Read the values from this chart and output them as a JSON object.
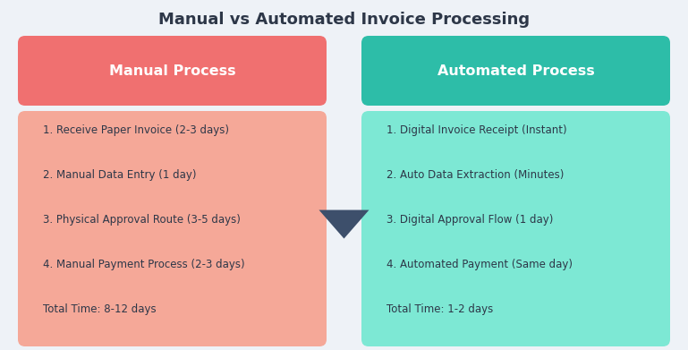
{
  "title": "Manual vs Automated Invoice Processing",
  "title_color": "#2d3748",
  "background_color": "#eef2f7",
  "manual_header_text": "Manual Process",
  "automated_header_text": "Automated Process",
  "manual_header_color": "#f07070",
  "automated_header_color": "#2dbda8",
  "manual_body_color": "#f5a898",
  "automated_body_color": "#7de8d4",
  "header_text_color": "#ffffff",
  "body_text_color": "#2d3748",
  "manual_items": [
    "1. Receive Paper Invoice (2-3 days)",
    "2. Manual Data Entry (1 day)",
    "3. Physical Approval Route (3-5 days)",
    "4. Manual Payment Process (2-3 days)",
    "Total Time: 8-12 days"
  ],
  "automated_items": [
    "1. Digital Invoice Receipt (Instant)",
    "2. Auto Data Extraction (Minutes)",
    "3. Digital Approval Flow (1 day)",
    "4. Automated Payment (Same day)",
    "Total Time: 1-2 days"
  ],
  "arrow_color": "#3d4f6b",
  "fig_width": 7.69,
  "fig_height": 3.91,
  "dpi": 100
}
